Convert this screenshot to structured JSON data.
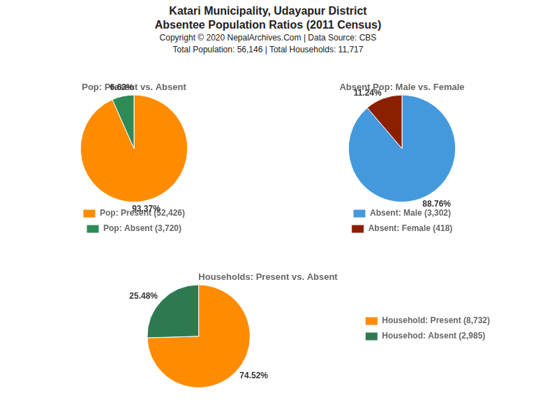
{
  "title": [
    "Katari Municipality, Udayapur District",
    "Absentee Population Ratios (2011 Census)"
  ],
  "subtitle": [
    "Copyright © 2020 NepalArchives.Com | Data Source: CBS",
    "Total Population: 56,146 | Total Households: 11,717"
  ],
  "chart_data": [
    {
      "type": "pie",
      "title": "Pop: Present vs. Absent",
      "categories": [
        "Pop: Present (52,426)",
        "Pop: Absent (3,720)"
      ],
      "values": [
        93.37,
        6.63
      ],
      "value_labels": [
        "93.37%",
        "6.63%"
      ],
      "colors": [
        "#FF8C00",
        "#2E8B57"
      ],
      "data_labels": true,
      "legend": "bottom"
    },
    {
      "type": "pie",
      "title": "Absent Pop: Male vs. Female",
      "categories": [
        "Absent: Male (3,302)",
        "Absent: Female (418)"
      ],
      "values": [
        88.76,
        11.24
      ],
      "value_labels": [
        "88.76%",
        "11.24%"
      ],
      "colors": [
        "#4499DD",
        "#8B2000"
      ],
      "data_labels": true,
      "legend": "bottom"
    },
    {
      "type": "pie",
      "title": "Households: Present vs. Absent",
      "categories": [
        "Household: Present (8,732)",
        "Househod: Absent (2,985)"
      ],
      "values": [
        74.52,
        25.48
      ],
      "value_labels": [
        "74.52%",
        "25.48%"
      ],
      "colors": [
        "#FF8C00",
        "#2E7A50"
      ],
      "data_labels": true,
      "legend": "right"
    }
  ]
}
